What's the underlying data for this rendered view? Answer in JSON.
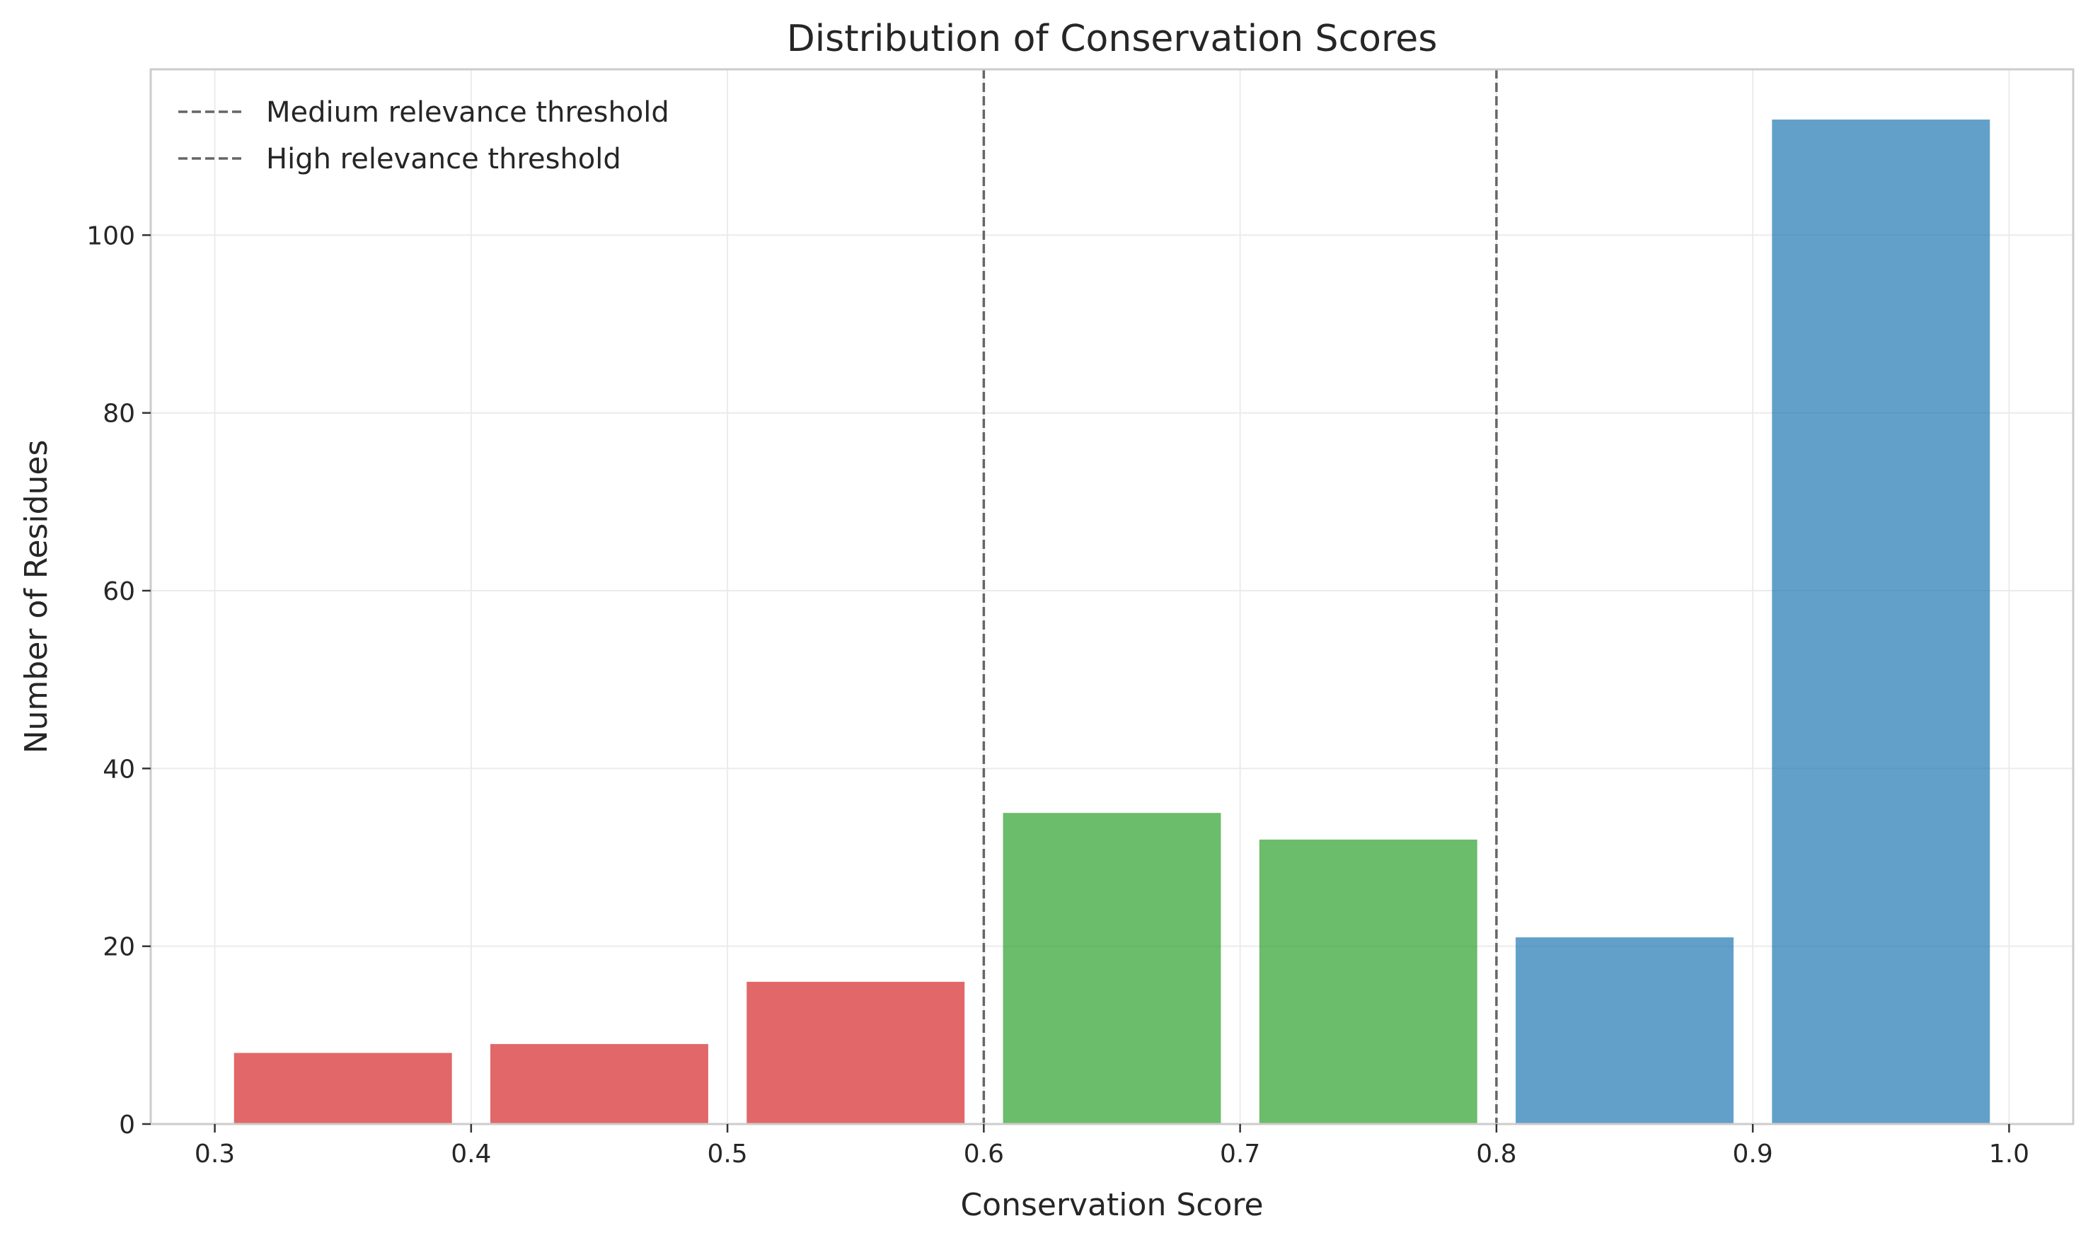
{
  "chart_data": {
    "type": "bar",
    "title": "Distribution of Conservation Scores",
    "xlabel": "Conservation Score",
    "ylabel": "Number of Residues",
    "xlim": [
      0.275,
      1.025
    ],
    "ylim": [
      0,
      118.65
    ],
    "xticks": [
      0.3,
      0.4,
      0.5,
      0.6,
      0.7,
      0.8,
      0.9,
      1.0
    ],
    "xtick_labels": [
      "0.3",
      "0.4",
      "0.5",
      "0.6",
      "0.7",
      "0.8",
      "0.9",
      "1.0"
    ],
    "yticks": [
      0,
      20,
      40,
      60,
      80,
      100
    ],
    "ytick_labels": [
      "0",
      "20",
      "40",
      "60",
      "80",
      "100"
    ],
    "bin_width": 0.1,
    "bar_width": 0.085,
    "bars": [
      {
        "x": 0.35,
        "value": 8,
        "color": "#d62728"
      },
      {
        "x": 0.45,
        "value": 9,
        "color": "#d62728"
      },
      {
        "x": 0.55,
        "value": 16,
        "color": "#d62728"
      },
      {
        "x": 0.65,
        "value": 35,
        "color": "#2ca02c"
      },
      {
        "x": 0.75,
        "value": 32,
        "color": "#2ca02c"
      },
      {
        "x": 0.85,
        "value": 21,
        "color": "#1f77b4"
      },
      {
        "x": 0.95,
        "value": 113,
        "color": "#1f77b4"
      }
    ],
    "thresholds": [
      {
        "x": 0.6,
        "name": "Medium relevance threshold",
        "color": "#666666"
      },
      {
        "x": 0.8,
        "name": "High relevance threshold",
        "color": "#666666"
      }
    ],
    "grid": true,
    "legend_position": "top-left"
  }
}
